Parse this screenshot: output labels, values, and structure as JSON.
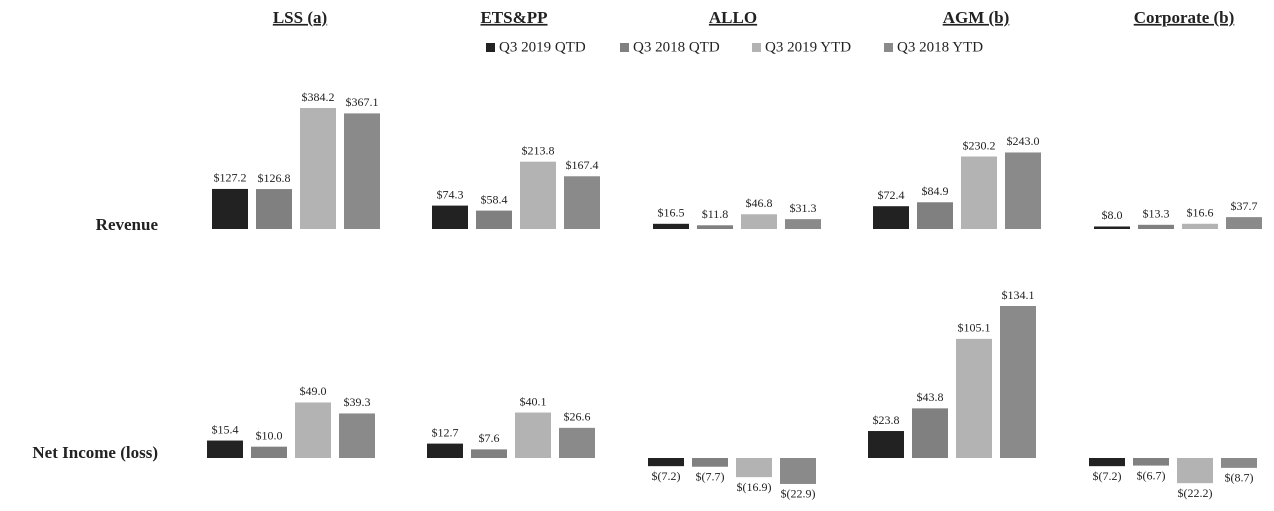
{
  "chart_data": {
    "type": "bar",
    "panel_titles": [
      "LSS (a)",
      "ETS&PP",
      "ALLO",
      "AGM (b)",
      "Corporate (b)"
    ],
    "row_labels": [
      "Revenue",
      "Net Income (loss)"
    ],
    "series": [
      {
        "name": "Q3 2019 QTD",
        "color": "#222222",
        "values": [
          [
            127.2,
            15.4
          ],
          [
            74.3,
            12.7
          ],
          [
            16.5,
            -7.2
          ],
          [
            72.4,
            23.8
          ],
          [
            8.0,
            -7.2
          ]
        ],
        "value_labels": [
          [
            "$127.2",
            "$15.4"
          ],
          [
            "$74.3",
            "$12.7"
          ],
          [
            "$16.5",
            "$(7.2)"
          ],
          [
            "$72.4",
            "$23.8"
          ],
          [
            "$8.0",
            "$(7.2)"
          ]
        ]
      },
      {
        "name": "Q3 2018 QTD",
        "color": "#808080",
        "values": [
          [
            126.8,
            10.0
          ],
          [
            58.4,
            7.6
          ],
          [
            11.8,
            -7.7
          ],
          [
            84.9,
            43.8
          ],
          [
            13.3,
            -6.7
          ]
        ],
        "value_labels": [
          [
            "$126.8",
            "$10.0"
          ],
          [
            "$58.4",
            "$7.6"
          ],
          [
            "$11.8",
            "$(7.7)"
          ],
          [
            "$84.9",
            "$43.8"
          ],
          [
            "$13.3",
            "$(6.7)"
          ]
        ]
      },
      {
        "name": "Q3 2019 YTD",
        "color": "#b3b3b3",
        "values": [
          [
            384.2,
            49.0
          ],
          [
            213.8,
            40.1
          ],
          [
            46.8,
            -16.9
          ],
          [
            230.2,
            105.1
          ],
          [
            16.6,
            -22.2
          ]
        ],
        "value_labels": [
          [
            "$384.2",
            "$49.0"
          ],
          [
            "$213.8",
            "$40.1"
          ],
          [
            "$46.8",
            "$(16.9)"
          ],
          [
            "$230.2",
            "$105.1"
          ],
          [
            "$16.6",
            "$(22.2)"
          ]
        ]
      },
      {
        "name": "Q3 2018 YTD",
        "color": "#8a8a8a",
        "values": [
          [
            367.1,
            39.3
          ],
          [
            167.4,
            26.6
          ],
          [
            31.3,
            -22.9
          ],
          [
            243.0,
            134.1
          ],
          [
            37.7,
            -8.7
          ]
        ],
        "value_labels": [
          [
            "$367.1",
            "$39.3"
          ],
          [
            "$167.4",
            "$26.6"
          ],
          [
            "$31.3",
            "$(22.9)"
          ],
          [
            "$243.0",
            "$134.1"
          ],
          [
            "$37.7",
            "$(8.7)"
          ]
        ]
      }
    ]
  }
}
